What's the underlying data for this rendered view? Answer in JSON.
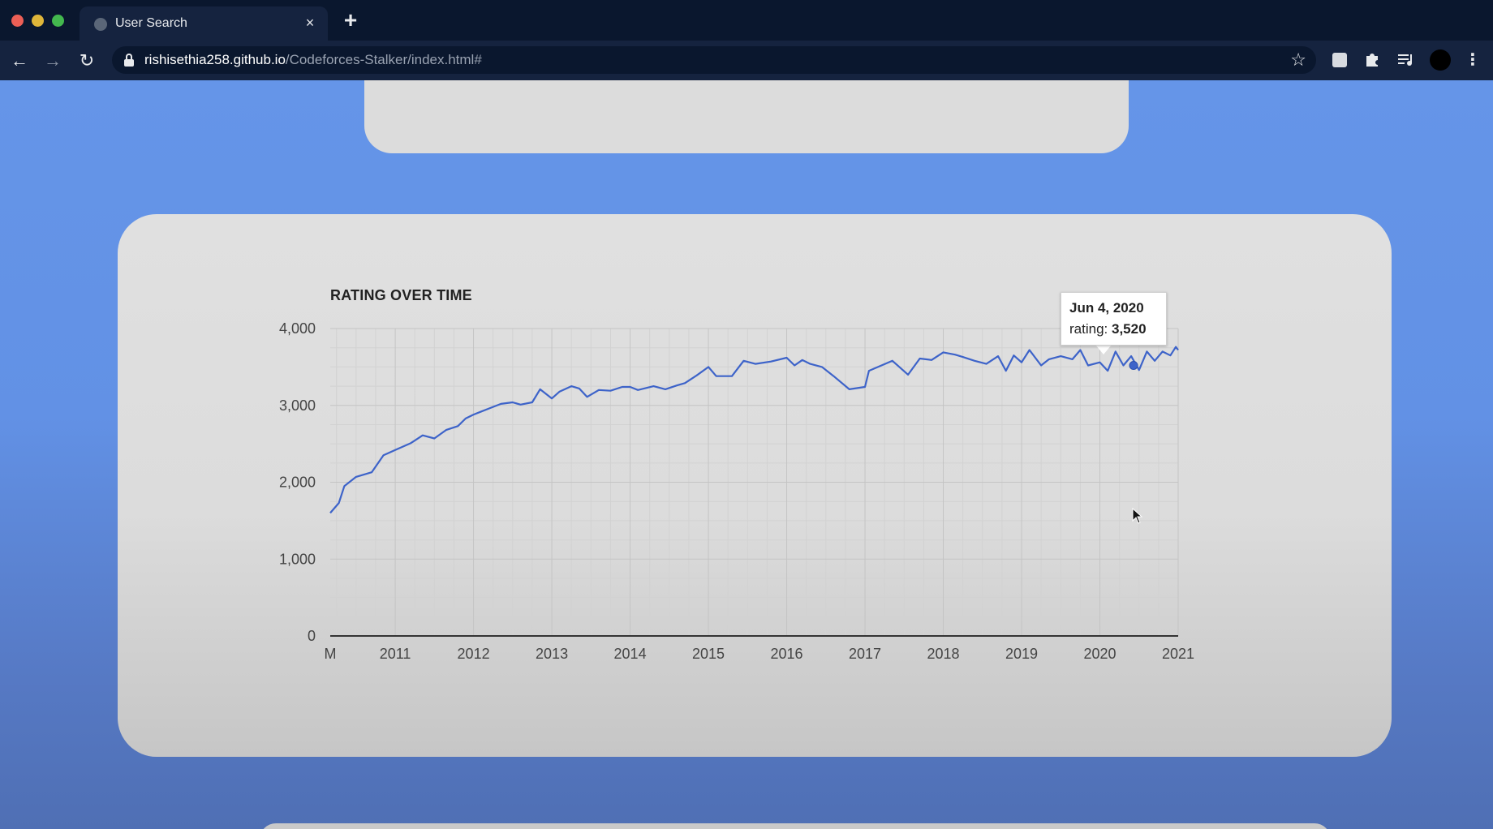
{
  "browser": {
    "tab_title": "User Search",
    "tab_close": "×",
    "new_tab": "+",
    "url_host": "rishisethia258.github.io",
    "url_path": "/Codeforces-Stalker/index.html#",
    "nav_back": "←",
    "nav_forward": "→",
    "nav_reload": "↻",
    "bookmark_star": "☆",
    "extension_icons": [
      "extension-icon",
      "puzzle-icon",
      "media-queue-icon"
    ],
    "menu": "⋮"
  },
  "chart": {
    "tooltip": {
      "date": "Jun 4, 2020",
      "label": "rating:",
      "value": "3,520"
    }
  },
  "chart_data": {
    "type": "line",
    "title": "RATING OVER TIME",
    "xlabel": "",
    "ylabel": "",
    "ylim": [
      0,
      4000
    ],
    "xlim": [
      2010.17,
      2021.0
    ],
    "y_ticks": [
      "0",
      "1,000",
      "2,000",
      "3,000",
      "4,000"
    ],
    "x_ticks": [
      {
        "value": 2010.17,
        "label": "M"
      },
      {
        "value": 2011,
        "label": "2011"
      },
      {
        "value": 2012,
        "label": "2012"
      },
      {
        "value": 2013,
        "label": "2013"
      },
      {
        "value": 2014,
        "label": "2014"
      },
      {
        "value": 2015,
        "label": "2015"
      },
      {
        "value": 2016,
        "label": "2016"
      },
      {
        "value": 2017,
        "label": "2017"
      },
      {
        "value": 2018,
        "label": "2018"
      },
      {
        "value": 2019,
        "label": "2019"
      },
      {
        "value": 2020,
        "label": "2020"
      },
      {
        "value": 2021,
        "label": "2021"
      }
    ],
    "grid": true,
    "color": "#3d63c9",
    "series": [
      {
        "name": "",
        "x": [
          2010.17,
          2010.28,
          2010.35,
          2010.5,
          2010.7,
          2010.85,
          2011.0,
          2011.2,
          2011.35,
          2011.5,
          2011.65,
          2011.8,
          2011.9,
          2012.0,
          2012.1,
          2012.2,
          2012.35,
          2012.5,
          2012.6,
          2012.75,
          2012.85,
          2013.0,
          2013.1,
          2013.25,
          2013.35,
          2013.45,
          2013.6,
          2013.75,
          2013.9,
          2014.0,
          2014.1,
          2014.3,
          2014.45,
          2014.6,
          2014.7,
          2014.85,
          2015.0,
          2015.1,
          2015.3,
          2015.45,
          2015.6,
          2015.8,
          2016.0,
          2016.1,
          2016.2,
          2016.3,
          2016.45,
          2016.6,
          2016.8,
          2017.0,
          2017.05,
          2017.35,
          2017.55,
          2017.7,
          2017.85,
          2018.0,
          2018.15,
          2018.25,
          2018.4,
          2018.55,
          2018.7,
          2018.8,
          2018.9,
          2019.0,
          2019.1,
          2019.25,
          2019.35,
          2019.5,
          2019.65,
          2019.75,
          2019.85,
          2020.0,
          2020.1,
          2020.2,
          2020.3,
          2020.4,
          2020.5,
          2020.6,
          2020.7,
          2020.8,
          2020.9,
          2020.97,
          2021.0
        ],
        "y": [
          1600,
          1730,
          1950,
          2070,
          2130,
          2350,
          2420,
          2510,
          2610,
          2570,
          2680,
          2730,
          2830,
          2880,
          2920,
          2960,
          3020,
          3040,
          3010,
          3040,
          3210,
          3090,
          3180,
          3250,
          3220,
          3110,
          3200,
          3190,
          3240,
          3240,
          3200,
          3250,
          3210,
          3260,
          3290,
          3390,
          3500,
          3380,
          3380,
          3580,
          3540,
          3570,
          3620,
          3520,
          3590,
          3540,
          3500,
          3380,
          3210,
          3240,
          3450,
          3580,
          3400,
          3610,
          3590,
          3690,
          3660,
          3630,
          3580,
          3540,
          3640,
          3450,
          3650,
          3560,
          3720,
          3520,
          3600,
          3640,
          3600,
          3720,
          3520,
          3560,
          3450,
          3700,
          3520,
          3640,
          3460,
          3700,
          3580,
          3700,
          3650,
          3760,
          3720
        ]
      }
    ],
    "highlight": {
      "x": 2020.43,
      "y": 3520
    }
  }
}
